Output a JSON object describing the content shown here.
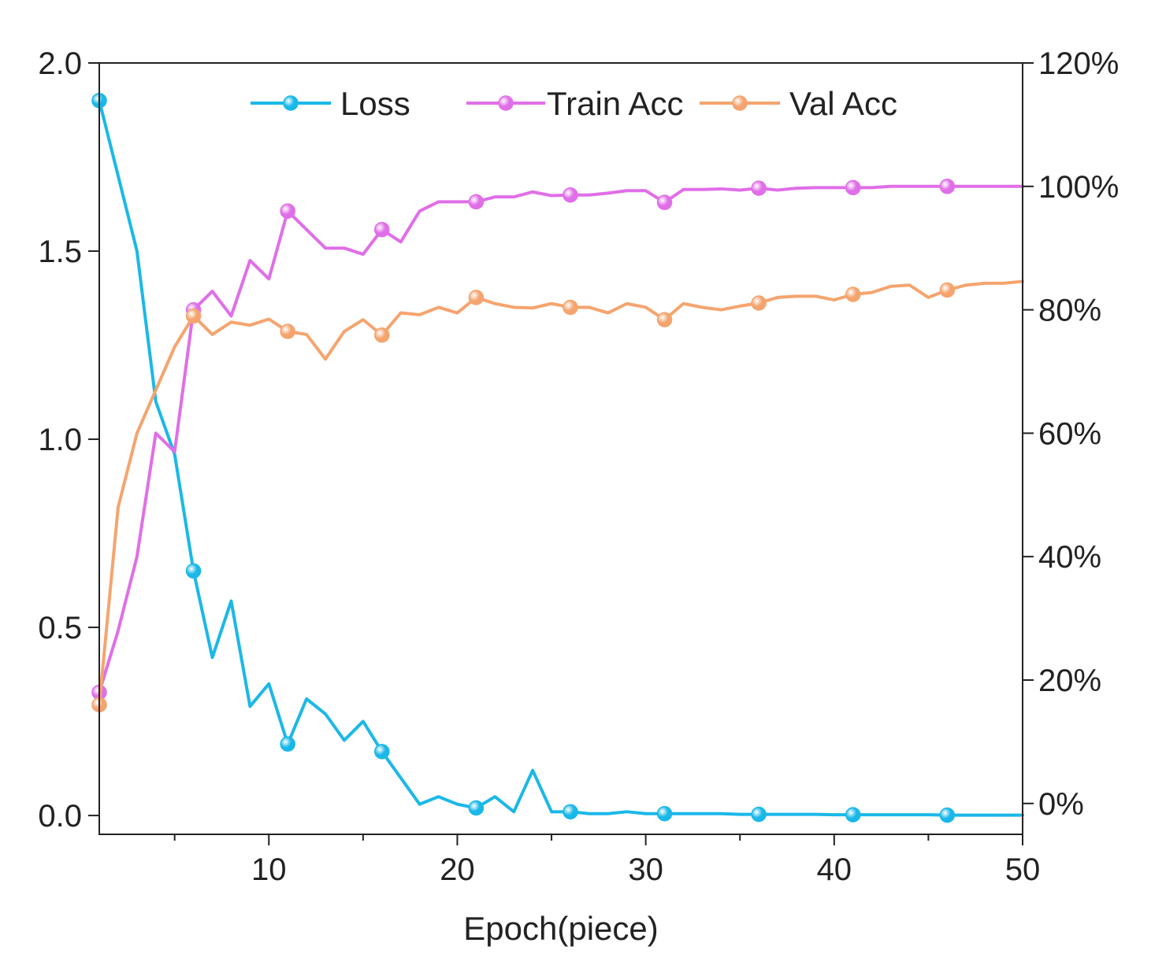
{
  "chart_data": {
    "type": "line",
    "title": "",
    "xlabel": "Epoch(piece)",
    "ylabel_left": "",
    "ylabel_right": "",
    "xlim": [
      1,
      50
    ],
    "ylim_left": [
      -0.05,
      2.0
    ],
    "ylim_right": [
      -5,
      120
    ],
    "x_ticks": [
      10,
      20,
      30,
      40,
      50
    ],
    "x_minor_ticks": [
      5,
      15,
      25,
      35,
      45
    ],
    "y_left_ticks": [
      0.0,
      0.5,
      1.0,
      1.5,
      2.0
    ],
    "y_left_tick_labels": [
      "0.0",
      "0.5",
      "1.0",
      "1.5",
      "2.0"
    ],
    "y_right_ticks": [
      0,
      20,
      40,
      60,
      80,
      100,
      120
    ],
    "y_right_tick_labels": [
      "0%",
      "20%",
      "40%",
      "60%",
      "80%",
      "100%",
      "120%"
    ],
    "x": [
      1,
      2,
      3,
      4,
      5,
      6,
      7,
      8,
      9,
      10,
      11,
      12,
      13,
      14,
      15,
      16,
      17,
      18,
      19,
      20,
      21,
      22,
      23,
      24,
      25,
      26,
      27,
      28,
      29,
      30,
      31,
      32,
      33,
      34,
      35,
      36,
      37,
      38,
      39,
      40,
      41,
      42,
      43,
      44,
      45,
      46,
      47,
      48,
      49,
      50
    ],
    "marker_every": 5,
    "marker_offset": 0,
    "legend_position": "top-center",
    "series": [
      {
        "name": "Loss",
        "axis": "left",
        "color": "#1ab8e8",
        "values": [
          1.9,
          1.7,
          1.5,
          1.1,
          0.96,
          0.65,
          0.42,
          0.57,
          0.29,
          0.35,
          0.19,
          0.31,
          0.27,
          0.2,
          0.25,
          0.17,
          0.1,
          0.03,
          0.05,
          0.03,
          0.02,
          0.05,
          0.01,
          0.12,
          0.01,
          0.01,
          0.005,
          0.005,
          0.01,
          0.005,
          0.005,
          0.005,
          0.005,
          0.005,
          0.003,
          0.003,
          0.003,
          0.003,
          0.003,
          0.002,
          0.002,
          0.002,
          0.002,
          0.002,
          0.002,
          0.001,
          0.001,
          0.001,
          0.001,
          0.001
        ]
      },
      {
        "name": "Train Acc",
        "axis": "right",
        "color": "#e06ee8",
        "values": [
          18,
          28,
          40,
          60,
          57,
          80,
          83,
          79,
          88,
          85,
          96,
          93,
          90,
          90,
          89,
          93,
          91,
          96,
          97.5,
          97.5,
          97.5,
          98.3,
          98.3,
          99.1,
          98.5,
          98.6,
          98.6,
          98.9,
          99.3,
          99.3,
          97.4,
          99.5,
          99.5,
          99.6,
          99.4,
          99.7,
          99.4,
          99.7,
          99.8,
          99.8,
          99.8,
          99.8,
          100,
          100,
          100,
          100,
          100,
          100,
          100,
          100
        ]
      },
      {
        "name": "Val Acc",
        "axis": "right",
        "color": "#f5a46e",
        "values": [
          16,
          48,
          60,
          67,
          74,
          79,
          76,
          78,
          77.5,
          78.5,
          76.5,
          76,
          72,
          76.5,
          78.4,
          75.9,
          79.5,
          79.2,
          80.4,
          79.5,
          82,
          81,
          80.4,
          80.3,
          81,
          80.4,
          80.4,
          79.5,
          81,
          80.4,
          78.4,
          81,
          80.4,
          80,
          80.6,
          81.1,
          82,
          82.2,
          82.2,
          81.6,
          82.5,
          82.8,
          83.8,
          84,
          82,
          83.2,
          84,
          84.3,
          84.3,
          84.6
        ]
      }
    ]
  }
}
